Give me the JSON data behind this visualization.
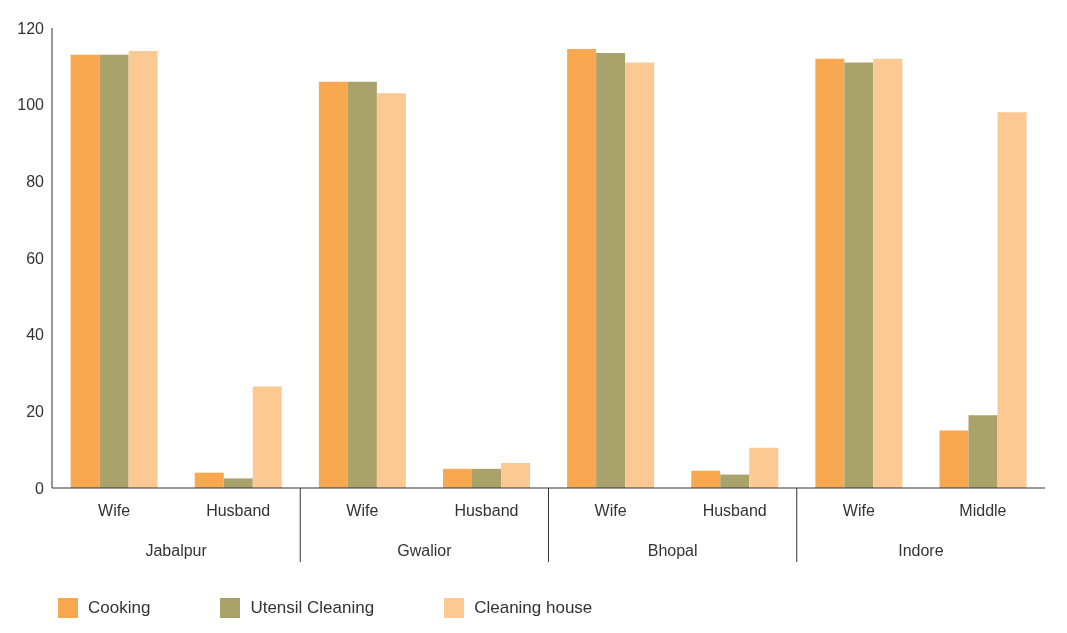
{
  "chart_data": {
    "type": "bar",
    "categories": [
      "Wife",
      "Husband",
      "Wife",
      "Husband",
      "Wife",
      "Husband",
      "Wife",
      "Middle"
    ],
    "annotations": [
      "Jabalpur",
      "Gwalior",
      "Bhopal",
      "Indore"
    ],
    "series": [
      {
        "name": "Cooking",
        "color": "#f7a850",
        "values": [
          113,
          4,
          106,
          5,
          114.5,
          4.5,
          112,
          15
        ]
      },
      {
        "name": "Utensil Cleaning",
        "color": "#a9a36b",
        "values": [
          113,
          2.5,
          106,
          5,
          113.5,
          3.5,
          111,
          19
        ]
      },
      {
        "name": "Cleaning house",
        "color": "#fdc993",
        "values": [
          114,
          26.5,
          103,
          6.5,
          111,
          10.5,
          112,
          98
        ]
      }
    ],
    "ylim": [
      0,
      120
    ],
    "yticks": [
      0,
      20,
      40,
      60,
      80,
      100,
      120
    ],
    "grid": false,
    "legend": "bottom left"
  }
}
